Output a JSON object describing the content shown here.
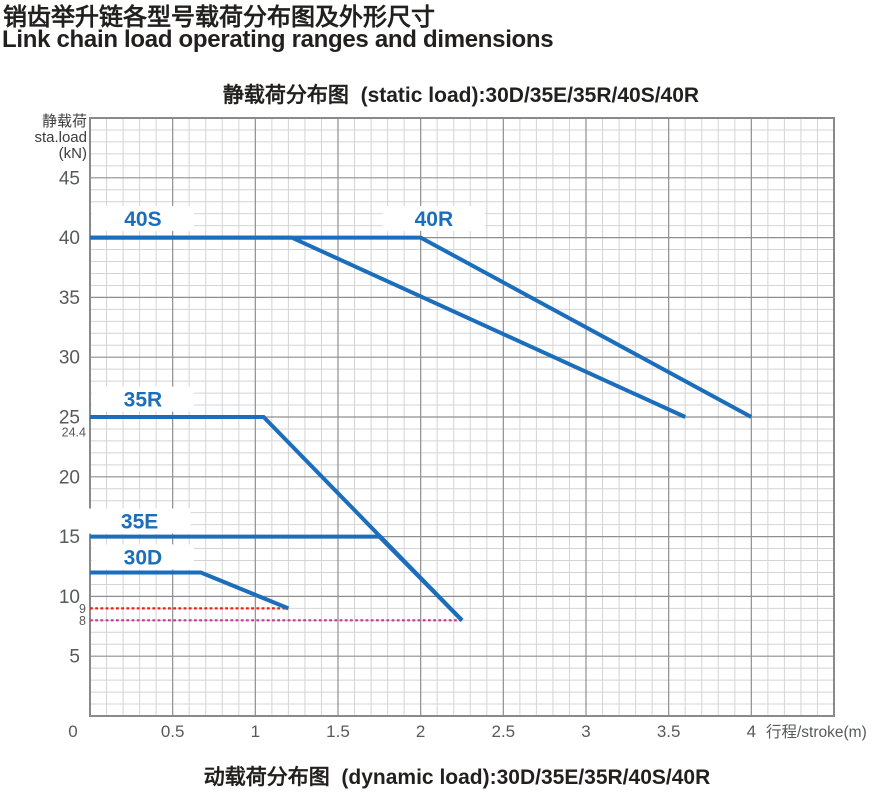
{
  "header": {
    "title_zh": "销齿举升链各型号载荷分布图及外形尺寸",
    "title_en": "Link chain load operating ranges and dimensions"
  },
  "static_chart": {
    "title": "静载荷分布图  (static load):30D/35E/35R/40S/40R",
    "y_axis_header_lines": [
      "静载荷",
      "sta.load",
      "(kN)"
    ]
  },
  "dynamic_chart": {
    "title": "动载荷分布图  (dynamic load):30D/35E/35R/40S/40R"
  },
  "chart_data": {
    "type": "line",
    "title": "静载荷分布图 (static load):30D/35E/35R/40S/40R",
    "xlabel": "行程/stroke(m)",
    "ylabel": "静载荷 sta.load (kN)",
    "xlim": [
      0,
      4.5
    ],
    "ylim": [
      0,
      50
    ],
    "x_major_step": 0.5,
    "x_minor_step": 0.1,
    "y_major_step": 5,
    "y_minor_step": 1,
    "grid": "on (major + minor)",
    "legend_position": "inline labels above lines",
    "x_ticks": [
      {
        "label": "0",
        "x": 0,
        "dx": -17
      },
      {
        "label": "0.5",
        "x": 0.5
      },
      {
        "label": "1",
        "x": 1
      },
      {
        "label": "1.5",
        "x": 1.5
      },
      {
        "label": "2",
        "x": 2
      },
      {
        "label": "2.5",
        "x": 2.5
      },
      {
        "label": "3",
        "x": 3
      },
      {
        "label": "3.5",
        "x": 3.5
      },
      {
        "label": "4",
        "x": 4
      }
    ],
    "y_ticks": [
      {
        "label": "5",
        "y": 5
      },
      {
        "label": "10",
        "y": 10
      },
      {
        "label": "15",
        "y": 15
      },
      {
        "label": "20",
        "y": 20
      },
      {
        "label": "25",
        "y": 25
      },
      {
        "label": "30",
        "y": 30
      },
      {
        "label": "35",
        "y": 35
      },
      {
        "label": "40",
        "y": 40
      },
      {
        "label": "45",
        "y": 45
      }
    ],
    "y_extra_ticks": [
      {
        "label": "24.4",
        "value": 24.4,
        "display_y": 23.75
      },
      {
        "label": "9",
        "value": 9,
        "display_y": 9
      },
      {
        "label": "8",
        "value": 8,
        "display_y": 8
      }
    ],
    "series": [
      {
        "name": "40S",
        "points": [
          [
            0,
            40
          ],
          [
            1.22,
            40
          ],
          [
            3.6,
            25
          ]
        ],
        "label_at": [
          0.32,
          41.6
        ]
      },
      {
        "name": "40R",
        "points": [
          [
            0,
            40
          ],
          [
            2.0,
            40
          ],
          [
            4.0,
            25
          ]
        ],
        "label_at": [
          2.08,
          41.6
        ]
      },
      {
        "name": "35R",
        "points": [
          [
            0,
            25
          ],
          [
            1.05,
            25
          ],
          [
            2.25,
            8
          ]
        ],
        "label_at": [
          0.32,
          26.5
        ]
      },
      {
        "name": "35E",
        "points": [
          [
            0,
            15
          ],
          [
            1.75,
            15
          ],
          [
            2.25,
            8
          ]
        ],
        "label_at": [
          0.3,
          16.3
        ]
      },
      {
        "name": "30D",
        "points": [
          [
            0,
            12
          ],
          [
            0.67,
            12
          ],
          [
            1.2,
            9
          ]
        ],
        "label_at": [
          0.32,
          13.3
        ]
      }
    ],
    "reference_lines": [
      {
        "label": "9",
        "y": 9,
        "x_from": 0,
        "x_to": 1.2,
        "color": "#e8231e",
        "style": "dotted"
      },
      {
        "label": "8",
        "y": 8,
        "x_from": 0,
        "x_to": 2.25,
        "color": "#c13a94",
        "style": "dotted"
      }
    ],
    "colors": {
      "series_line": "#1b6ebc",
      "series_label": "#1b6ebc",
      "grid_minor": "#d4d4d4",
      "grid_major": "#8f8f8f",
      "axis_border": "#8a8a8a",
      "tick_text": "#58595b",
      "title_text": "#221f1f"
    }
  }
}
